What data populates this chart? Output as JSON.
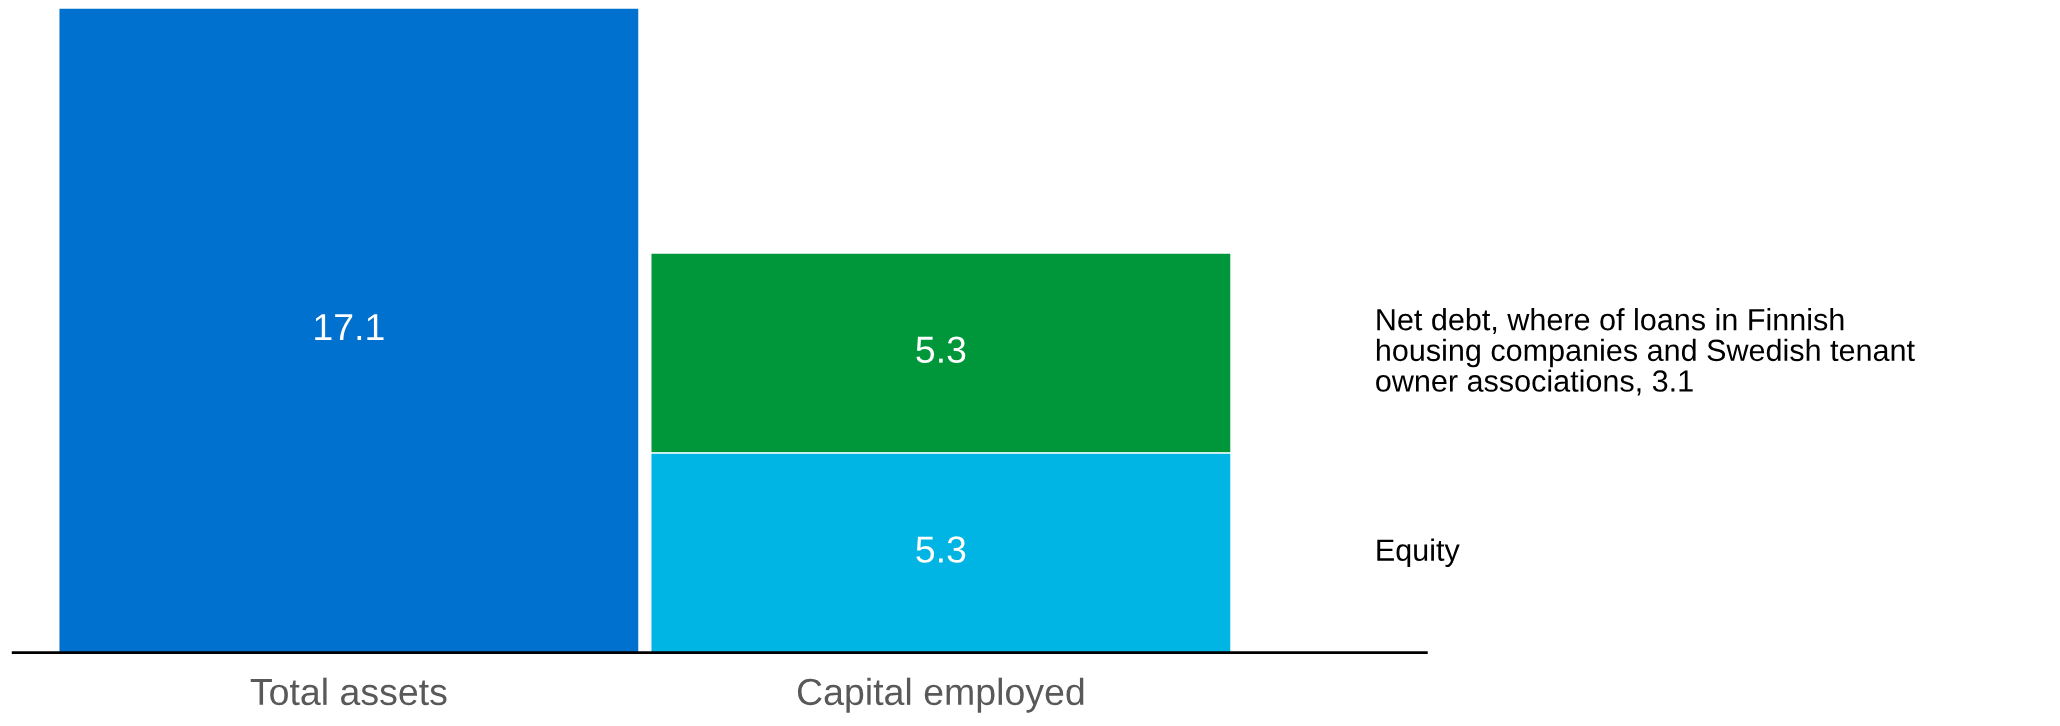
{
  "chart_data": {
    "type": "bar",
    "stacked": true,
    "data_labels": true,
    "legend": false,
    "grid": false,
    "categories": [
      "Total assets",
      "Capital employed"
    ],
    "series": [
      {
        "color": "#0071ce",
        "values": [
          17.1,
          null
        ]
      },
      {
        "name": "Equity",
        "color": "#00b4e3",
        "values": [
          null,
          5.3
        ]
      },
      {
        "name": "Net debt, where of loans in Finnish\nhousing companies and Swedish tenant\nowner associations, 3.1",
        "color": "#00973a",
        "values": [
          null,
          5.3
        ]
      }
    ]
  }
}
